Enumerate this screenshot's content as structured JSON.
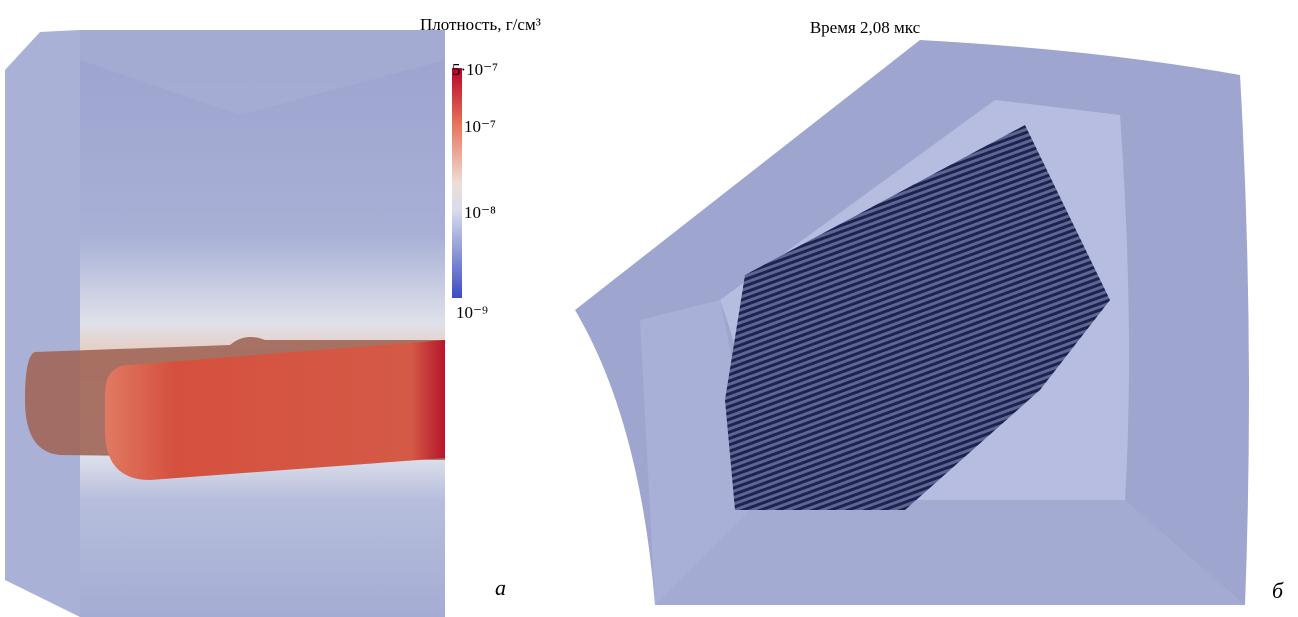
{
  "panel_a": {
    "colorbar": {
      "title": "Плотность, г/см³",
      "ticks": [
        "5·10⁻⁷",
        "10⁻⁷",
        "10⁻⁸",
        "10⁻⁹"
      ]
    },
    "label": "а"
  },
  "panel_b": {
    "time": "Время 2,08 мкс",
    "label": "б"
  }
}
